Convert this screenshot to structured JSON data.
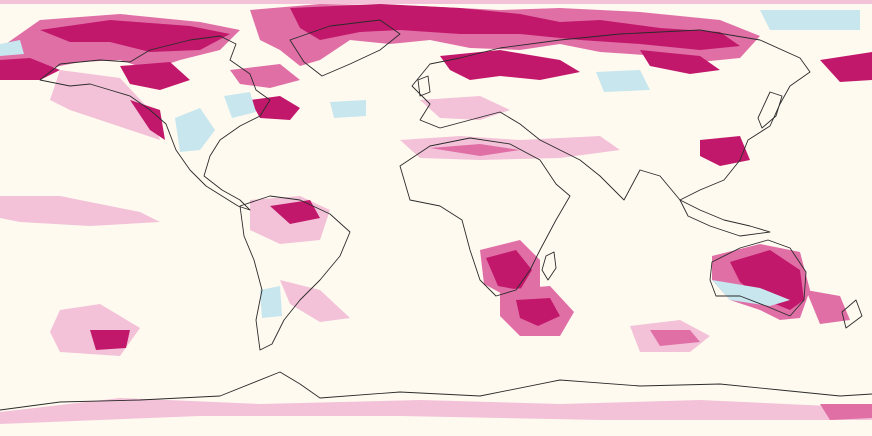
{
  "map": {
    "projection": "equirectangular",
    "extent": "global",
    "background": "#fffaf0",
    "colors": {
      "positive_strong": "#c2186b",
      "positive_mid": "#e06fa6",
      "positive_light": "#f3c2d8",
      "negative_light": "#c7e6ee",
      "coastline": "#2b2b2b"
    },
    "anomaly_regions": [
      {
        "name": "arctic-north-america",
        "level": "positive_strong"
      },
      {
        "name": "arctic-greenland",
        "level": "positive_strong"
      },
      {
        "name": "arctic-siberia",
        "level": "positive_strong"
      },
      {
        "name": "western-europe",
        "level": "positive_mid"
      },
      {
        "name": "north-africa",
        "level": "positive_light"
      },
      {
        "name": "southern-africa",
        "level": "positive_strong"
      },
      {
        "name": "australia",
        "level": "positive_strong"
      },
      {
        "name": "south-america",
        "level": "positive_mid"
      },
      {
        "name": "eastern-north-america",
        "level": "negative_light"
      },
      {
        "name": "south-indian-ocean",
        "level": "positive_mid"
      },
      {
        "name": "antarctica",
        "level": "positive_light"
      }
    ]
  }
}
